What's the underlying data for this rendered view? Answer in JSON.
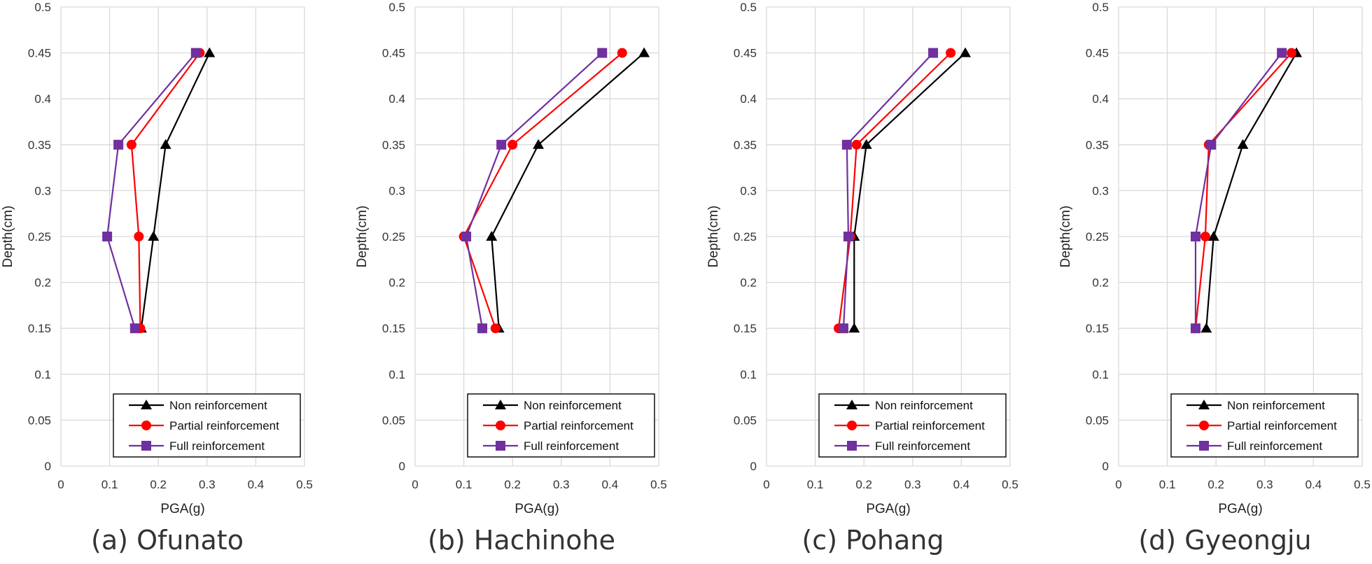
{
  "figure": {
    "panels": [
      {
        "caption": "(a) Ofunato"
      },
      {
        "caption": "(b) Hachinohe"
      },
      {
        "caption": "(c) Pohang"
      },
      {
        "caption": "(d) Gyeongju"
      }
    ]
  },
  "chart_data": [
    {
      "type": "line",
      "title": "(a) Ofunato",
      "xlabel": "PGA(g)",
      "ylabel": "Depth(cm)",
      "xlim": [
        0,
        0.5
      ],
      "ylim": [
        0,
        0.5
      ],
      "x_ticks": [
        "0",
        "0.1",
        "0.2",
        "0.3",
        "0.4",
        "0.5"
      ],
      "y_ticks": [
        "0",
        "0.05",
        "0.1",
        "0.15",
        "0.2",
        "0.25",
        "0.3",
        "0.35",
        "0.4",
        "0.45",
        "0.5"
      ],
      "grid": true,
      "legend_position": "bottom-right",
      "depths": [
        0.15,
        0.25,
        0.35,
        0.45
      ],
      "series": [
        {
          "name": "Non reinforcement",
          "color": "#000000",
          "marker": "triangle",
          "pga": [
            0.165,
            0.19,
            0.215,
            0.305
          ]
        },
        {
          "name": "Partial reinforcement",
          "color": "#ff0000",
          "marker": "circle",
          "pga": [
            0.163,
            0.16,
            0.145,
            0.285
          ]
        },
        {
          "name": "Full reinforcement",
          "color": "#7030a0",
          "marker": "square",
          "pga": [
            0.152,
            0.095,
            0.118,
            0.277
          ]
        }
      ]
    },
    {
      "type": "line",
      "title": "(b) Hachinohe",
      "xlabel": "PGA(g)",
      "ylabel": "Depth(cm)",
      "xlim": [
        0,
        0.5
      ],
      "ylim": [
        0,
        0.5
      ],
      "x_ticks": [
        "0",
        "0.1",
        "0.2",
        "0.3",
        "0.4",
        "0.5"
      ],
      "y_ticks": [
        "0",
        "0.05",
        "0.1",
        "0.15",
        "0.2",
        "0.25",
        "0.3",
        "0.35",
        "0.4",
        "0.45",
        "0.5"
      ],
      "grid": true,
      "legend_position": "bottom-right",
      "depths": [
        0.15,
        0.25,
        0.35,
        0.45
      ],
      "series": [
        {
          "name": "Non reinforcement",
          "color": "#000000",
          "marker": "triangle",
          "pga": [
            0.172,
            0.157,
            0.253,
            0.47
          ]
        },
        {
          "name": "Partial reinforcement",
          "color": "#ff0000",
          "marker": "circle",
          "pga": [
            0.165,
            0.1,
            0.2,
            0.425
          ]
        },
        {
          "name": "Full reinforcement",
          "color": "#7030a0",
          "marker": "square",
          "pga": [
            0.138,
            0.105,
            0.177,
            0.384
          ]
        }
      ]
    },
    {
      "type": "line",
      "title": "(c) Pohang",
      "xlabel": "PGA(g)",
      "ylabel": "Depth(cm)",
      "xlim": [
        0,
        0.5
      ],
      "ylim": [
        0,
        0.5
      ],
      "x_ticks": [
        "0",
        "0.1",
        "0.2",
        "0.3",
        "0.4",
        "0.5"
      ],
      "y_ticks": [
        "0",
        "0.05",
        "0.1",
        "0.15",
        "0.2",
        "0.25",
        "0.3",
        "0.35",
        "0.4",
        "0.45",
        "0.5"
      ],
      "grid": true,
      "legend_position": "bottom-right",
      "depths": [
        0.15,
        0.25,
        0.35,
        0.45
      ],
      "series": [
        {
          "name": "Non reinforcement",
          "color": "#000000",
          "marker": "triangle",
          "pga": [
            0.18,
            0.18,
            0.205,
            0.408
          ]
        },
        {
          "name": "Partial reinforcement",
          "color": "#ff0000",
          "marker": "circle",
          "pga": [
            0.148,
            0.172,
            0.185,
            0.378
          ]
        },
        {
          "name": "Full reinforcement",
          "color": "#7030a0",
          "marker": "square",
          "pga": [
            0.158,
            0.168,
            0.165,
            0.342
          ]
        }
      ]
    },
    {
      "type": "line",
      "title": "(d) Gyeongju",
      "xlabel": "PGA(g)",
      "ylabel": "Depth(cm)",
      "xlim": [
        0,
        0.5
      ],
      "ylim": [
        0,
        0.5
      ],
      "x_ticks": [
        "0",
        "0.1",
        "0.2",
        "0.3",
        "0.4",
        "0.5"
      ],
      "y_ticks": [
        "0",
        "0.05",
        "0.1",
        "0.15",
        "0.2",
        "0.25",
        "0.3",
        "0.35",
        "0.4",
        "0.45",
        "0.5"
      ],
      "grid": true,
      "legend_position": "bottom-right",
      "depths": [
        0.15,
        0.25,
        0.35,
        0.45
      ],
      "series": [
        {
          "name": "Non reinforcement",
          "color": "#000000",
          "marker": "triangle",
          "pga": [
            0.18,
            0.195,
            0.255,
            0.365
          ]
        },
        {
          "name": "Partial reinforcement",
          "color": "#ff0000",
          "marker": "circle",
          "pga": [
            0.158,
            0.178,
            0.185,
            0.355
          ]
        },
        {
          "name": "Full reinforcement",
          "color": "#7030a0",
          "marker": "square",
          "pga": [
            0.158,
            0.158,
            0.19,
            0.335
          ]
        }
      ]
    }
  ]
}
